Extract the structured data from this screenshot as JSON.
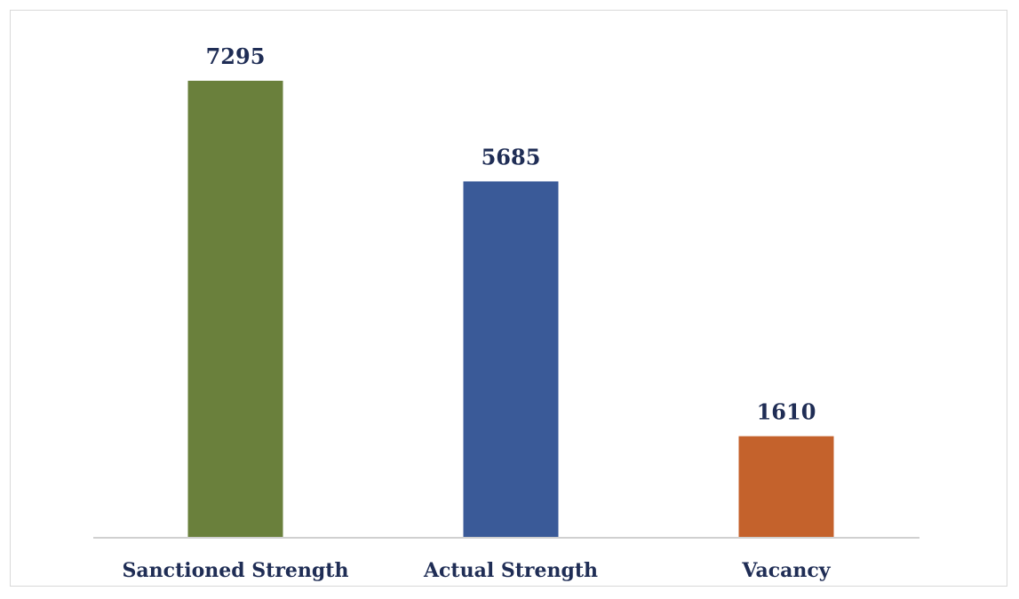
{
  "chart_data": {
    "type": "bar",
    "title": "",
    "xlabel": "",
    "ylabel": "",
    "categories": [
      "Sanctioned Strength",
      "Actual Strength",
      "Vacancy"
    ],
    "values": [
      7295,
      5685,
      1610
    ],
    "colors": [
      "#6a803c",
      "#3a5a98",
      "#c4622c"
    ],
    "ylim": [
      0,
      7295
    ],
    "grid": false,
    "legend": "none",
    "data_labels": [
      "7295",
      "5685",
      "1610"
    ]
  }
}
